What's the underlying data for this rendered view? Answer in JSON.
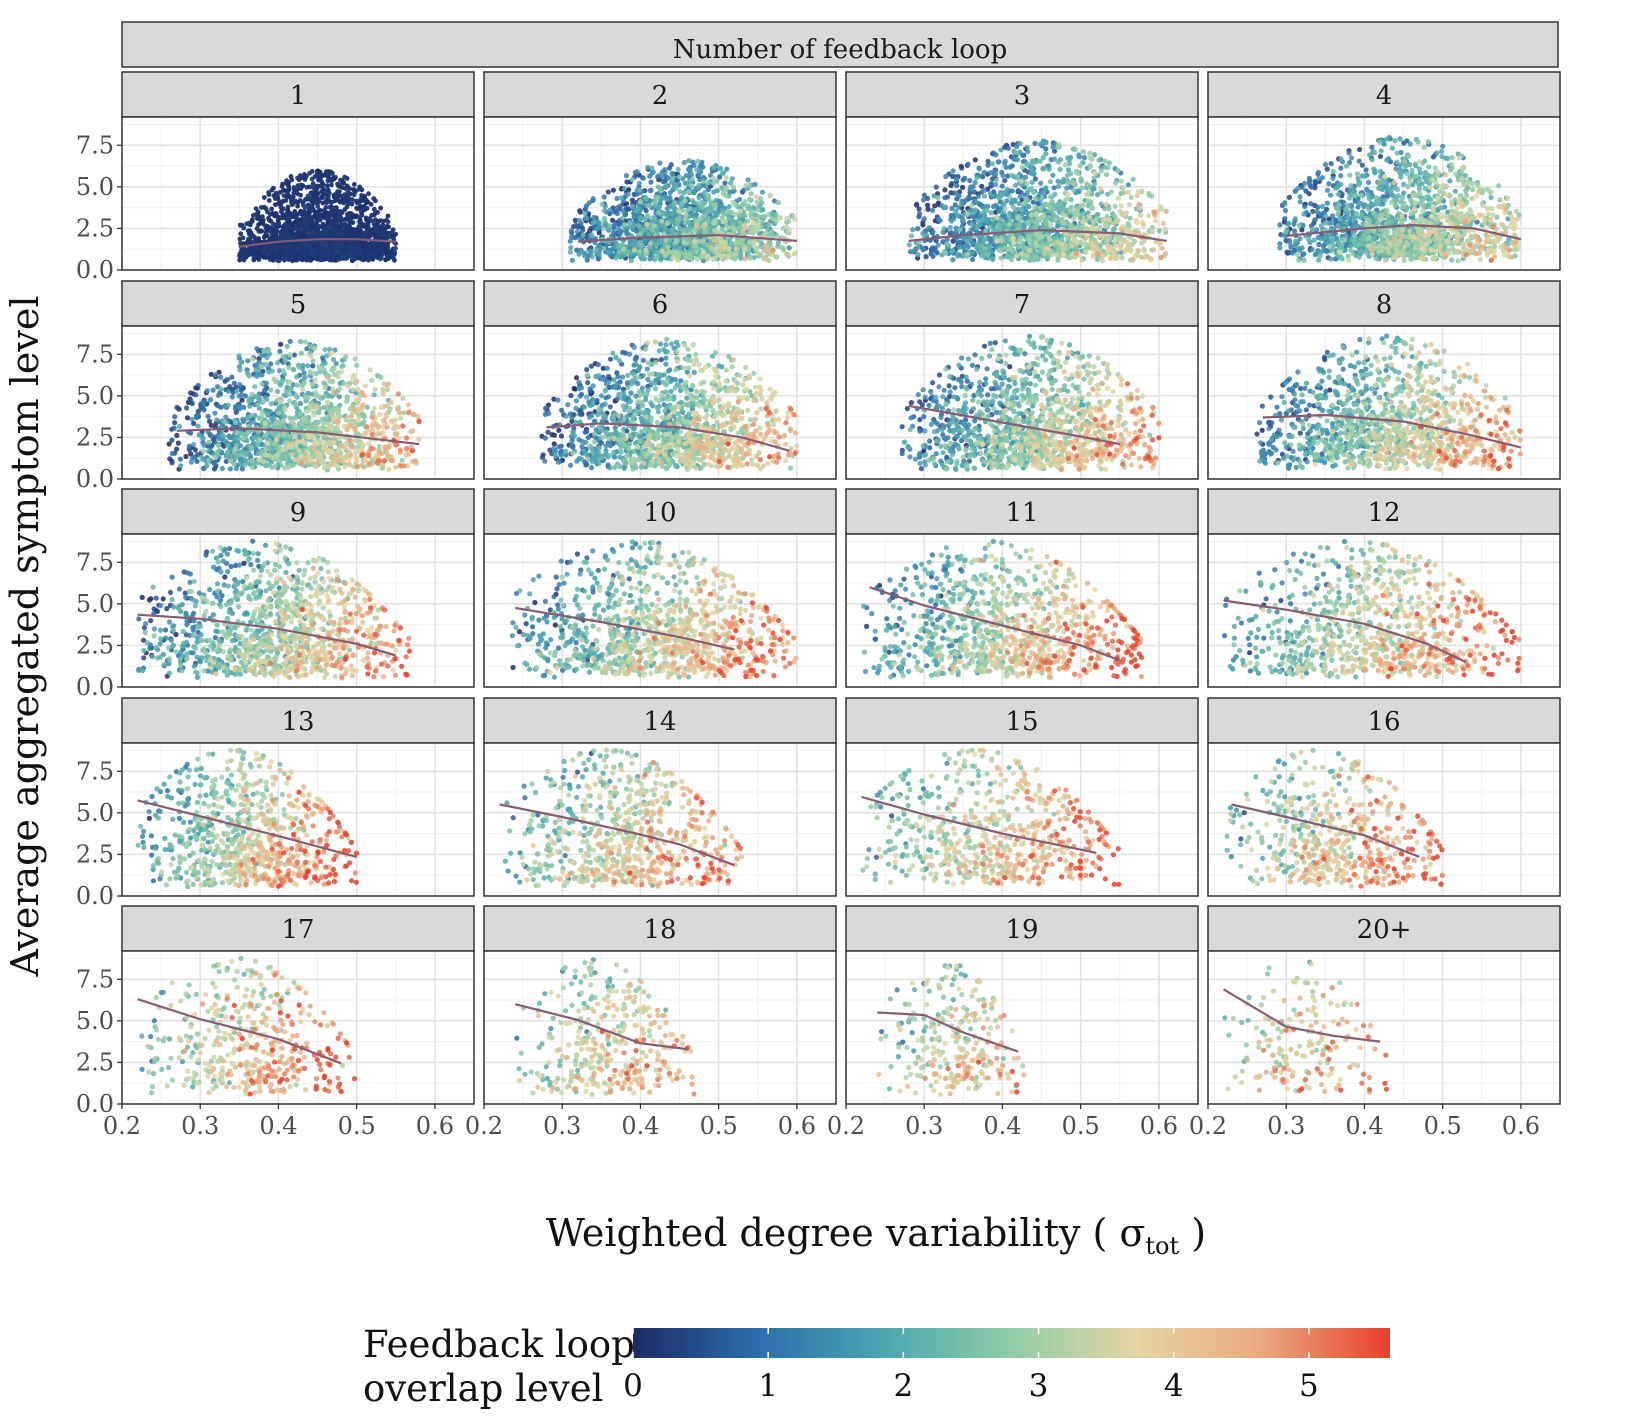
{
  "chart_data": {
    "type": "scatter",
    "facet_header": "Number of feedback loop",
    "xlabel": "Weighted degree variability (",
    "xlabel_symbol": "σ",
    "xlabel_subscript": "tot",
    "xlabel_close": ")",
    "ylabel": "Average aggregated symptom level",
    "xlim": [
      0.2,
      0.65
    ],
    "ylim": [
      0,
      9.2
    ],
    "x_ticks": [
      "0.2",
      "0.3",
      "0.4",
      "0.5",
      "0.6"
    ],
    "y_ticks": [
      "0.0",
      "2.5",
      "5.0",
      "7.5"
    ],
    "grid": true,
    "legend": {
      "title_line1": "Feedback loop",
      "title_line2": "overlap level",
      "position": "bottom",
      "range": [
        0,
        5.6
      ],
      "ticks": [
        "0",
        "1",
        "2",
        "3",
        "4",
        "5"
      ],
      "colors": [
        "#1c2a66",
        "#2c6fae",
        "#4ca7b0",
        "#8fcda6",
        "#e5d5a2",
        "#e9a77f",
        "#e8412a"
      ]
    },
    "loess_color": "#8b5a73",
    "panels": [
      {
        "label": "1",
        "x_range": [
          0.35,
          0.55
        ],
        "y_mid": 1.5,
        "y_top": 6.0,
        "mean_overlap": 0.0,
        "overlap_slope": 0,
        "trend": [
          [
            0.35,
            1.4
          ],
          [
            0.4,
            1.7
          ],
          [
            0.45,
            1.85
          ],
          [
            0.5,
            1.85
          ],
          [
            0.55,
            1.7
          ]
        ]
      },
      {
        "label": "2",
        "x_range": [
          0.31,
          0.6
        ],
        "y_mid": 2.5,
        "y_top": 6.6,
        "mean_overlap": 1.8,
        "overlap_slope": 2,
        "trend": [
          [
            0.32,
            1.7
          ],
          [
            0.4,
            1.95
          ],
          [
            0.5,
            2.1
          ],
          [
            0.6,
            1.75
          ]
        ]
      },
      {
        "label": "3",
        "x_range": [
          0.28,
          0.61
        ],
        "y_mid": 2.8,
        "y_top": 7.8,
        "mean_overlap": 2.0,
        "overlap_slope": 3,
        "trend": [
          [
            0.28,
            1.75
          ],
          [
            0.35,
            2.1
          ],
          [
            0.45,
            2.4
          ],
          [
            0.55,
            2.2
          ],
          [
            0.61,
            1.75
          ]
        ]
      },
      {
        "label": "4",
        "x_range": [
          0.29,
          0.6
        ],
        "y_mid": 3.0,
        "y_top": 8.0,
        "mean_overlap": 2.2,
        "overlap_slope": 3,
        "trend": [
          [
            0.3,
            2.05
          ],
          [
            0.4,
            2.5
          ],
          [
            0.46,
            2.7
          ],
          [
            0.54,
            2.5
          ],
          [
            0.6,
            1.85
          ]
        ]
      },
      {
        "label": "5",
        "x_range": [
          0.26,
          0.58
        ],
        "y_mid": 3.3,
        "y_top": 8.3,
        "mean_overlap": 2.3,
        "overlap_slope": 4,
        "trend": [
          [
            0.27,
            2.9
          ],
          [
            0.35,
            3.05
          ],
          [
            0.45,
            2.8
          ],
          [
            0.58,
            2.1
          ]
        ]
      },
      {
        "label": "6",
        "x_range": [
          0.27,
          0.6
        ],
        "y_mid": 3.4,
        "y_top": 8.4,
        "mean_overlap": 2.4,
        "overlap_slope": 4,
        "trend": [
          [
            0.28,
            3.1
          ],
          [
            0.35,
            3.35
          ],
          [
            0.45,
            3.1
          ],
          [
            0.53,
            2.5
          ],
          [
            0.59,
            1.7
          ]
        ]
      },
      {
        "label": "7",
        "x_range": [
          0.27,
          0.6
        ],
        "y_mid": 3.6,
        "y_top": 8.6,
        "mean_overlap": 2.6,
        "overlap_slope": 4,
        "trend": [
          [
            0.28,
            4.4
          ],
          [
            0.4,
            3.4
          ],
          [
            0.5,
            2.55
          ],
          [
            0.55,
            2.1
          ]
        ]
      },
      {
        "label": "8",
        "x_range": [
          0.26,
          0.6
        ],
        "y_mid": 3.7,
        "y_top": 8.6,
        "mean_overlap": 2.7,
        "overlap_slope": 4,
        "trend": [
          [
            0.27,
            3.7
          ],
          [
            0.35,
            3.85
          ],
          [
            0.45,
            3.45
          ],
          [
            0.53,
            2.7
          ],
          [
            0.6,
            1.9
          ]
        ]
      },
      {
        "label": "9",
        "x_range": [
          0.22,
          0.57
        ],
        "y_mid": 3.9,
        "y_top": 8.7,
        "mean_overlap": 2.8,
        "overlap_slope": 4,
        "trend": [
          [
            0.22,
            4.35
          ],
          [
            0.3,
            4.1
          ],
          [
            0.4,
            3.5
          ],
          [
            0.5,
            2.6
          ],
          [
            0.55,
            1.9
          ]
        ]
      },
      {
        "label": "10",
        "x_range": [
          0.23,
          0.6
        ],
        "y_mid": 4.0,
        "y_top": 8.7,
        "mean_overlap": 3.0,
        "overlap_slope": 4,
        "trend": [
          [
            0.24,
            4.75
          ],
          [
            0.35,
            3.9
          ],
          [
            0.45,
            3.0
          ],
          [
            0.52,
            2.25
          ]
        ]
      },
      {
        "label": "11",
        "x_range": [
          0.22,
          0.58
        ],
        "y_mid": 4.0,
        "y_top": 8.7,
        "mean_overlap": 3.1,
        "overlap_slope": 4,
        "trend": [
          [
            0.23,
            6.0
          ],
          [
            0.3,
            4.9
          ],
          [
            0.4,
            3.7
          ],
          [
            0.5,
            2.5
          ],
          [
            0.55,
            1.6
          ]
        ]
      },
      {
        "label": "12",
        "x_range": [
          0.22,
          0.6
        ],
        "y_mid": 4.1,
        "y_top": 8.7,
        "mean_overlap": 3.2,
        "overlap_slope": 4,
        "trend": [
          [
            0.22,
            5.2
          ],
          [
            0.3,
            4.65
          ],
          [
            0.4,
            3.8
          ],
          [
            0.48,
            2.6
          ],
          [
            0.53,
            1.5
          ]
        ]
      },
      {
        "label": "13",
        "x_range": [
          0.22,
          0.5
        ],
        "y_mid": 4.2,
        "y_top": 8.7,
        "mean_overlap": 3.3,
        "overlap_slope": 4,
        "trend": [
          [
            0.22,
            5.75
          ],
          [
            0.3,
            4.8
          ],
          [
            0.4,
            3.6
          ],
          [
            0.5,
            2.35
          ]
        ]
      },
      {
        "label": "14",
        "x_range": [
          0.22,
          0.53
        ],
        "y_mid": 4.3,
        "y_top": 8.7,
        "mean_overlap": 3.4,
        "overlap_slope": 3,
        "trend": [
          [
            0.22,
            5.5
          ],
          [
            0.3,
            4.75
          ],
          [
            0.4,
            3.7
          ],
          [
            0.45,
            3.1
          ],
          [
            0.52,
            1.85
          ]
        ]
      },
      {
        "label": "15",
        "x_range": [
          0.22,
          0.55
        ],
        "y_mid": 4.3,
        "y_top": 8.7,
        "mean_overlap": 3.5,
        "overlap_slope": 3,
        "trend": [
          [
            0.22,
            5.95
          ],
          [
            0.3,
            4.9
          ],
          [
            0.4,
            3.75
          ],
          [
            0.52,
            2.6
          ]
        ]
      },
      {
        "label": "16",
        "x_range": [
          0.22,
          0.5
        ],
        "y_mid": 4.3,
        "y_top": 8.7,
        "mean_overlap": 3.6,
        "overlap_slope": 3,
        "trend": [
          [
            0.23,
            5.5
          ],
          [
            0.3,
            4.75
          ],
          [
            0.4,
            3.65
          ],
          [
            0.47,
            2.35
          ]
        ]
      },
      {
        "label": "17",
        "x_range": [
          0.22,
          0.5
        ],
        "y_mid": 4.4,
        "y_top": 8.7,
        "mean_overlap": 3.7,
        "overlap_slope": 3,
        "trend": [
          [
            0.22,
            6.3
          ],
          [
            0.3,
            5.1
          ],
          [
            0.4,
            3.9
          ],
          [
            0.48,
            2.45
          ]
        ]
      },
      {
        "label": "18",
        "x_range": [
          0.24,
          0.47
        ],
        "y_mid": 4.4,
        "y_top": 8.6,
        "mean_overlap": 3.5,
        "overlap_slope": 2,
        "trend": [
          [
            0.24,
            6.0
          ],
          [
            0.32,
            5.05
          ],
          [
            0.4,
            3.65
          ],
          [
            0.46,
            3.3
          ]
        ]
      },
      {
        "label": "19",
        "x_range": [
          0.24,
          0.43
        ],
        "y_mid": 4.5,
        "y_top": 8.5,
        "mean_overlap": 3.3,
        "overlap_slope": 2,
        "trend": [
          [
            0.24,
            5.5
          ],
          [
            0.3,
            5.35
          ],
          [
            0.35,
            4.3
          ],
          [
            0.42,
            3.15
          ]
        ]
      },
      {
        "label": "20+",
        "x_range": [
          0.22,
          0.43
        ],
        "y_mid": 4.6,
        "y_top": 8.6,
        "mean_overlap": 3.8,
        "overlap_slope": 2,
        "trend": [
          [
            0.22,
            6.9
          ],
          [
            0.3,
            4.65
          ],
          [
            0.36,
            4.1
          ],
          [
            0.42,
            3.75
          ]
        ]
      }
    ]
  }
}
